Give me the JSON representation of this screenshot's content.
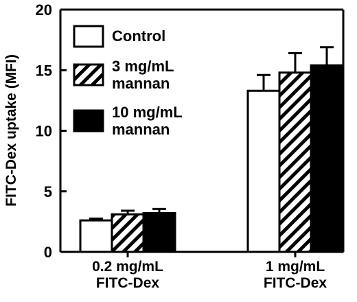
{
  "chart_data": {
    "type": "bar",
    "title": "",
    "xlabel": "",
    "ylabel": "FITC-Dex uptake (MFI)",
    "ylim": [
      0,
      20
    ],
    "yticks": [
      0,
      5,
      10,
      15,
      20
    ],
    "grid": false,
    "legend_position": "top-left",
    "categories": [
      [
        "0.2 mg/mL",
        "FITC-Dex"
      ],
      [
        "1 mg/mL",
        "FITC-Dex"
      ]
    ],
    "series": [
      {
        "name": [
          "Control"
        ],
        "fill": "white",
        "values": [
          2.6,
          13.3
        ],
        "errors": [
          0.15,
          1.3
        ]
      },
      {
        "name": [
          "3 mg/mL",
          "mannan"
        ],
        "fill": "hatched",
        "values": [
          3.1,
          14.8
        ],
        "errors": [
          0.3,
          1.6
        ]
      },
      {
        "name": [
          "10 mg/mL",
          "mannan"
        ],
        "fill": "black",
        "values": [
          3.2,
          15.4
        ],
        "errors": [
          0.35,
          1.5
        ]
      }
    ]
  }
}
